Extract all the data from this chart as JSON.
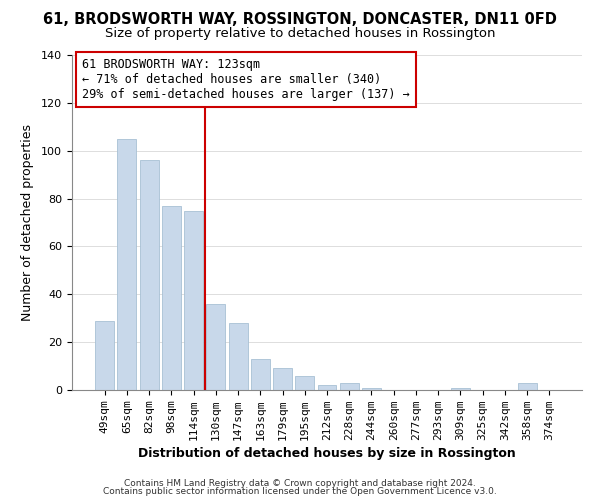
{
  "title": "61, BRODSWORTH WAY, ROSSINGTON, DONCASTER, DN11 0FD",
  "subtitle": "Size of property relative to detached houses in Rossington",
  "xlabel": "Distribution of detached houses by size in Rossington",
  "ylabel": "Number of detached properties",
  "bar_labels": [
    "49sqm",
    "65sqm",
    "82sqm",
    "98sqm",
    "114sqm",
    "130sqm",
    "147sqm",
    "163sqm",
    "179sqm",
    "195sqm",
    "212sqm",
    "228sqm",
    "244sqm",
    "260sqm",
    "277sqm",
    "293sqm",
    "309sqm",
    "325sqm",
    "342sqm",
    "358sqm",
    "374sqm"
  ],
  "bar_heights": [
    29,
    105,
    96,
    77,
    75,
    36,
    28,
    13,
    9,
    6,
    2,
    3,
    1,
    0,
    0,
    0,
    1,
    0,
    0,
    3,
    0
  ],
  "bar_color": "#c8d8ea",
  "bar_edgecolor": "#a8c0d4",
  "vline_x_index": 5,
  "vline_color": "#cc0000",
  "annotation_title": "61 BRODSWORTH WAY: 123sqm",
  "annotation_line1": "← 71% of detached houses are smaller (340)",
  "annotation_line2": "29% of semi-detached houses are larger (137) →",
  "annotation_box_facecolor": "#ffffff",
  "annotation_box_edgecolor": "#cc0000",
  "ylim": [
    0,
    140
  ],
  "yticks": [
    0,
    20,
    40,
    60,
    80,
    100,
    120,
    140
  ],
  "footnote1": "Contains HM Land Registry data © Crown copyright and database right 2024.",
  "footnote2": "Contains public sector information licensed under the Open Government Licence v3.0.",
  "background_color": "#ffffff",
  "title_fontsize": 10.5,
  "subtitle_fontsize": 9.5,
  "axis_label_fontsize": 9,
  "tick_fontsize": 8,
  "annotation_fontsize": 8.5,
  "footnote_fontsize": 6.5,
  "figsize": [
    6.0,
    5.0
  ],
  "dpi": 100
}
